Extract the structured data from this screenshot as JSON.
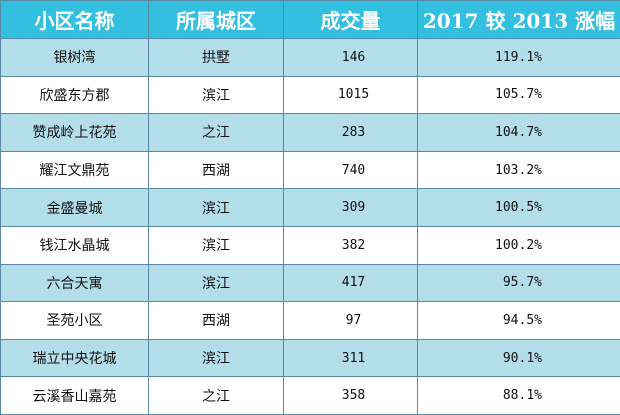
{
  "table": {
    "headers": [
      "小区名称",
      "所属城区",
      "成交量",
      "2017 较 2013 涨幅"
    ],
    "rows": [
      {
        "name": "银树湾",
        "district": "拱墅",
        "volume": "146",
        "growth": "119.1%"
      },
      {
        "name": "欣盛东方郡",
        "district": "滨江",
        "volume": "1015",
        "growth": "105.7%"
      },
      {
        "name": "赞成岭上花苑",
        "district": "之江",
        "volume": "283",
        "growth": "104.7%"
      },
      {
        "name": "耀江文鼎苑",
        "district": "西湖",
        "volume": "740",
        "growth": "103.2%"
      },
      {
        "name": "金盛曼城",
        "district": "滨江",
        "volume": "309",
        "growth": "100.5%"
      },
      {
        "name": "钱江水晶城",
        "district": "滨江",
        "volume": "382",
        "growth": "100.2%"
      },
      {
        "name": "六合天寓",
        "district": "滨江",
        "volume": "417",
        "growth": "95.7%"
      },
      {
        "name": "圣苑小区",
        "district": "西湖",
        "volume": "97",
        "growth": "94.5%"
      },
      {
        "name": "瑞立中央花城",
        "district": "滨江",
        "volume": "311",
        "growth": "90.1%"
      },
      {
        "name": "云溪香山嘉苑",
        "district": "之江",
        "volume": "358",
        "growth": "88.1%"
      }
    ]
  },
  "colors": {
    "header_bg": "#33bfe0",
    "band_bg": "#b3dde9",
    "plain_bg": "#ffffff",
    "border": "#5a8aa3"
  }
}
